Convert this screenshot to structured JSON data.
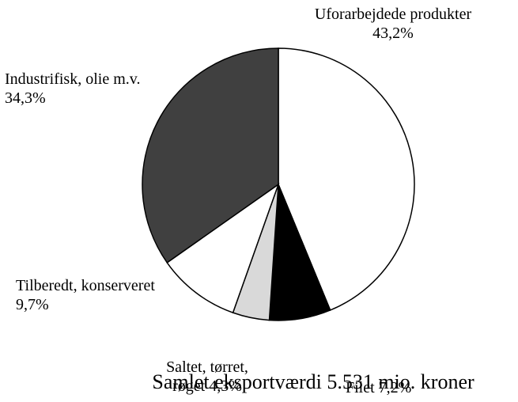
{
  "chart_data": {
    "type": "pie",
    "title": "Samlet eksportværdi 5.531 mio. kroner",
    "categories": [
      "Uforarbejdede produkter",
      "Filet",
      "Saltet, tørret, røget",
      "Tilberedt, konserveret",
      "Industrifisk, olie m.v."
    ],
    "values": [
      43.2,
      7.2,
      4.3,
      9.7,
      34.3
    ],
    "value_labels": [
      "43,2%",
      "7,2%",
      "4,3%",
      "9,7%",
      "34,3%"
    ],
    "colors": [
      "#ffffff",
      "#000000",
      "#d9d9d9",
      "#ffffff",
      "#404040"
    ]
  }
}
